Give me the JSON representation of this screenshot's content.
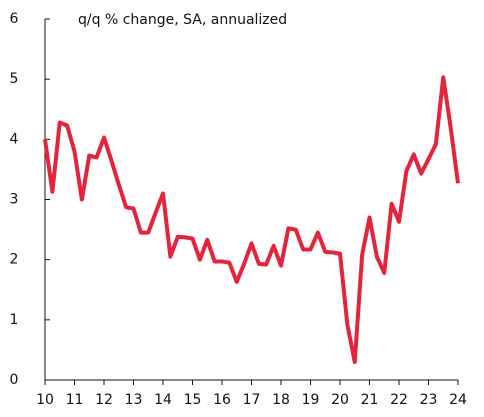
{
  "chart_data": {
    "type": "line",
    "subtitle": "q/q % change, SA, annualized",
    "x": [
      10,
      10.25,
      10.5,
      10.75,
      11,
      11.25,
      11.5,
      11.75,
      12,
      12.25,
      12.5,
      12.75,
      13,
      13.25,
      13.5,
      13.75,
      14,
      14.25,
      14.5,
      14.75,
      15,
      15.25,
      15.5,
      15.75,
      16,
      16.25,
      16.5,
      16.75,
      17,
      17.25,
      17.5,
      17.75,
      18,
      18.25,
      18.5,
      18.75,
      19,
      19.25,
      19.5,
      19.75,
      20,
      20.25,
      20.5,
      20.75,
      21,
      21.25,
      21.5,
      21.75,
      22,
      22.25,
      22.5,
      22.75,
      23,
      23.25,
      23.5,
      23.75,
      24
    ],
    "series": [
      {
        "color": "#e5243b",
        "values": [
          4.0,
          3.13,
          4.28,
          4.23,
          3.8,
          3.0,
          3.73,
          3.7,
          4.03,
          3.65,
          3.25,
          2.87,
          2.85,
          2.45,
          2.45,
          2.78,
          3.1,
          2.05,
          2.38,
          2.37,
          2.35,
          2.0,
          2.33,
          1.97,
          1.97,
          1.95,
          1.63,
          1.93,
          2.27,
          1.93,
          1.92,
          2.23,
          1.9,
          2.52,
          2.5,
          2.17,
          2.17,
          2.45,
          2.13,
          2.12,
          2.1,
          0.92,
          0.3,
          2.08,
          2.7,
          2.05,
          1.78,
          2.93,
          2.63,
          3.47,
          3.75,
          3.43,
          3.67,
          3.92,
          5.03,
          4.2,
          3.27
        ]
      }
    ],
    "xlim": [
      10,
      24
    ],
    "xticks": [
      10,
      11,
      12,
      13,
      14,
      15,
      16,
      17,
      18,
      19,
      20,
      21,
      22,
      23,
      24
    ],
    "ylim": [
      0,
      6
    ],
    "yticks": [
      0,
      1,
      2,
      3,
      4,
      5,
      6
    ]
  }
}
